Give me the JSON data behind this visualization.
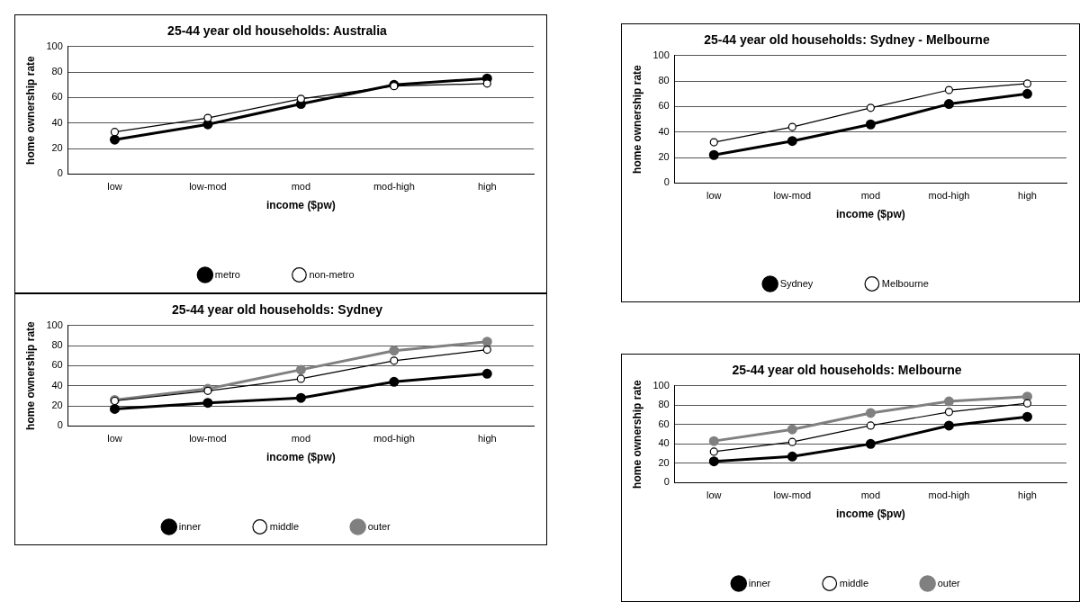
{
  "chart_data": [
    {
      "type": "line",
      "title": "25-44 year old households: Australia",
      "xlabel": "income ($pw)",
      "ylabel": "home ownership rate",
      "categories": [
        "low",
        "low-mod",
        "mod",
        "mod-high",
        "high"
      ],
      "ylim": [
        0,
        100
      ],
      "yticks": [
        0,
        20,
        40,
        60,
        80,
        100
      ],
      "grid": "y",
      "legend": "bottom",
      "marker": "circle",
      "series": [
        {
          "name": "metro",
          "color": "#000000",
          "values": [
            27,
            39,
            55,
            70,
            75
          ]
        },
        {
          "name": "non-metro",
          "color": "#000000",
          "values": [
            33,
            44,
            59,
            69,
            71
          ]
        }
      ]
    },
    {
      "type": "line",
      "title": "25-44 year old households: Sydney",
      "xlabel": "income ($pw)",
      "ylabel": "home ownership rate",
      "categories": [
        "low",
        "low-mod",
        "mod",
        "mod-high",
        "high"
      ],
      "ylim": [
        0,
        100
      ],
      "yticks": [
        0,
        20,
        40,
        60,
        80,
        100
      ],
      "grid": "y",
      "legend": "bottom",
      "marker": "circle",
      "series": [
        {
          "name": "inner",
          "color": "#000000",
          "values": [
            17,
            23,
            28,
            44,
            52
          ]
        },
        {
          "name": "middle",
          "color": "#000000",
          "values": [
            25,
            35,
            47,
            65,
            76
          ]
        },
        {
          "name": "outer",
          "color": "#808080",
          "values": [
            26,
            37,
            56,
            75,
            84
          ]
        }
      ]
    },
    {
      "type": "line",
      "title": "25-44 year old households: Sydney - Melbourne",
      "xlabel": "income ($pw)",
      "ylabel": "home ownership rate",
      "categories": [
        "low",
        "low-mod",
        "mod",
        "mod-high",
        "high"
      ],
      "ylim": [
        0,
        100
      ],
      "yticks": [
        0,
        20,
        40,
        60,
        80,
        100
      ],
      "grid": "y",
      "legend": "bottom",
      "marker": "circle",
      "series": [
        {
          "name": "Sydney",
          "color": "#000000",
          "values": [
            22,
            33,
            46,
            62,
            70
          ]
        },
        {
          "name": "Melbourne",
          "color": "#000000",
          "values": [
            32,
            44,
            59,
            73,
            78
          ]
        }
      ]
    },
    {
      "type": "line",
      "title": "25-44 year old households: Melbourne",
      "xlabel": "income ($pw)",
      "ylabel": "home ownership rate",
      "categories": [
        "low",
        "low-mod",
        "mod",
        "mod-high",
        "high"
      ],
      "ylim": [
        0,
        100
      ],
      "yticks": [
        0,
        20,
        40,
        60,
        80,
        100
      ],
      "grid": "y",
      "legend": "bottom",
      "marker": "circle",
      "series": [
        {
          "name": "inner",
          "color": "#000000",
          "values": [
            22,
            27,
            40,
            59,
            68
          ]
        },
        {
          "name": "middle",
          "color": "#000000",
          "values": [
            32,
            42,
            59,
            73,
            82
          ]
        },
        {
          "name": "outer",
          "color": "#808080",
          "values": [
            43,
            55,
            72,
            84,
            89
          ]
        }
      ]
    }
  ]
}
